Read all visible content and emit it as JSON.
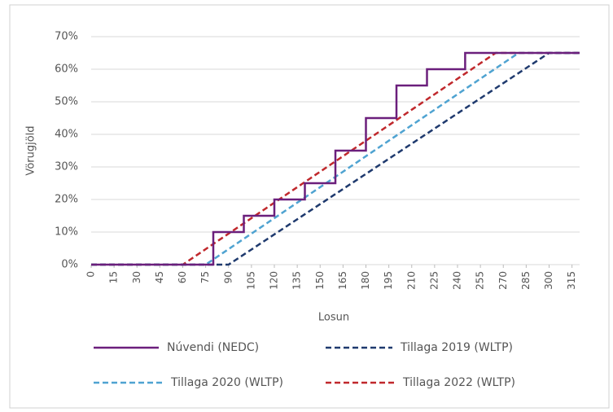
{
  "chart_data": {
    "type": "line",
    "xlabel": "Losun",
    "ylabel": "Vörugjöld",
    "xlim": [
      0,
      320
    ],
    "ylim": [
      0,
      70
    ],
    "xticks": [
      0,
      15,
      30,
      45,
      60,
      75,
      90,
      105,
      120,
      135,
      150,
      165,
      180,
      195,
      210,
      225,
      240,
      255,
      270,
      285,
      300,
      315
    ],
    "yticks": [
      {
        "value": 0,
        "label": "0%"
      },
      {
        "value": 10,
        "label": "10%"
      },
      {
        "value": 20,
        "label": "20%"
      },
      {
        "value": 30,
        "label": "30%"
      },
      {
        "value": 40,
        "label": "40%"
      },
      {
        "value": 50,
        "label": "50%"
      },
      {
        "value": 60,
        "label": "60%"
      },
      {
        "value": 70,
        "label": "70%"
      }
    ],
    "grid": true,
    "series": [
      {
        "name": "Núvendi (NEDC)",
        "color": "#6b1f7c",
        "dashed": false,
        "x": [
          0,
          80,
          80,
          100,
          100,
          120,
          120,
          140,
          140,
          160,
          160,
          180,
          180,
          200,
          200,
          220,
          220,
          245,
          245,
          320
        ],
        "values": [
          0,
          0,
          10,
          10,
          15,
          15,
          20,
          20,
          25,
          25,
          35,
          35,
          45,
          45,
          55,
          55,
          60,
          60,
          65,
          65
        ]
      },
      {
        "name": "Tillaga 2019 (WLTP)",
        "color": "#1f3a6e",
        "dashed": true,
        "x": [
          0,
          90,
          300,
          320
        ],
        "values": [
          0,
          0,
          65,
          65
        ]
      },
      {
        "name": "Tillaga 2020  (WLTP)",
        "color": "#4fa3d1",
        "dashed": true,
        "x": [
          0,
          75,
          280,
          320
        ],
        "values": [
          0,
          0,
          65,
          65
        ]
      },
      {
        "name": "Tillaga 2022  (WLTP)",
        "color": "#c0282c",
        "dashed": true,
        "x": [
          0,
          60,
          265,
          320
        ],
        "values": [
          0,
          0,
          65,
          65
        ]
      }
    ]
  }
}
